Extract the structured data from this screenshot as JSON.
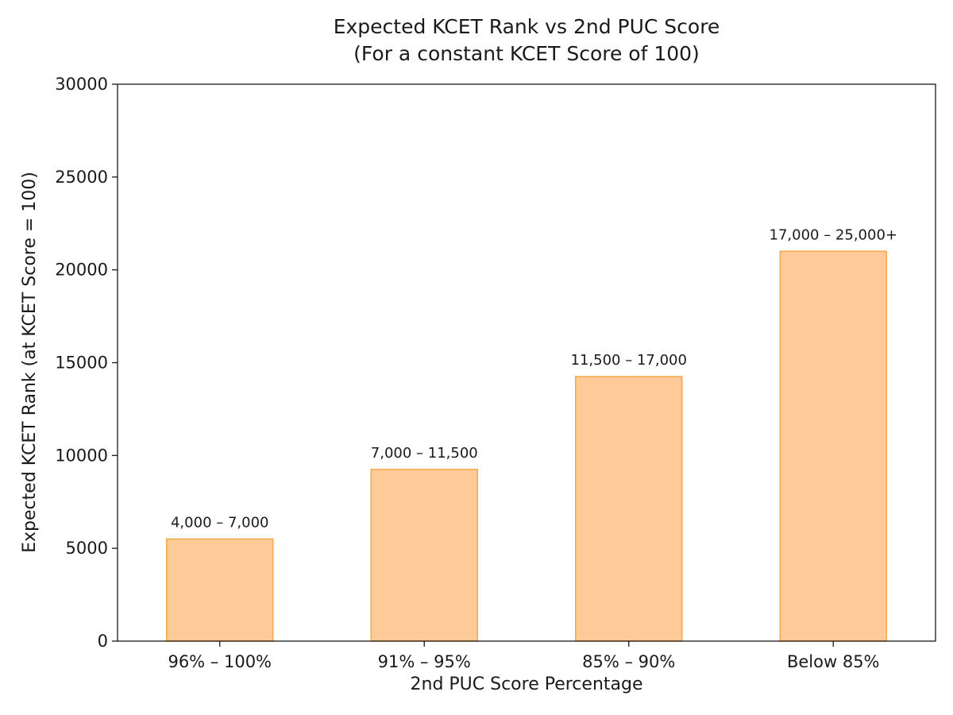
{
  "chart_data": {
    "type": "bar",
    "title": "Expected KCET Rank vs 2nd PUC Score",
    "subtitle": "(For a constant KCET Score of 100)",
    "xlabel": "2nd PUC Score Percentage",
    "ylabel": "Expected KCET Rank (at KCET Score = 100)",
    "categories": [
      "96% – 100%",
      "91% – 95%",
      "85% – 90%",
      "Below 85%"
    ],
    "values": [
      5500,
      9250,
      14250,
      21000
    ],
    "data_labels": [
      "4,000 – 7,000",
      "7,000 – 11,500",
      "11,500 – 17,000",
      "17,000 – 25,000+"
    ],
    "ylim": [
      0,
      30000
    ],
    "yticks": [
      0,
      5000,
      10000,
      15000,
      20000,
      25000,
      30000
    ],
    "grid": false,
    "legend": "none",
    "colors": {
      "bar_fill": "#fdca98",
      "bar_edge": "#f5a94f",
      "axis": "#1a1a1a"
    }
  }
}
